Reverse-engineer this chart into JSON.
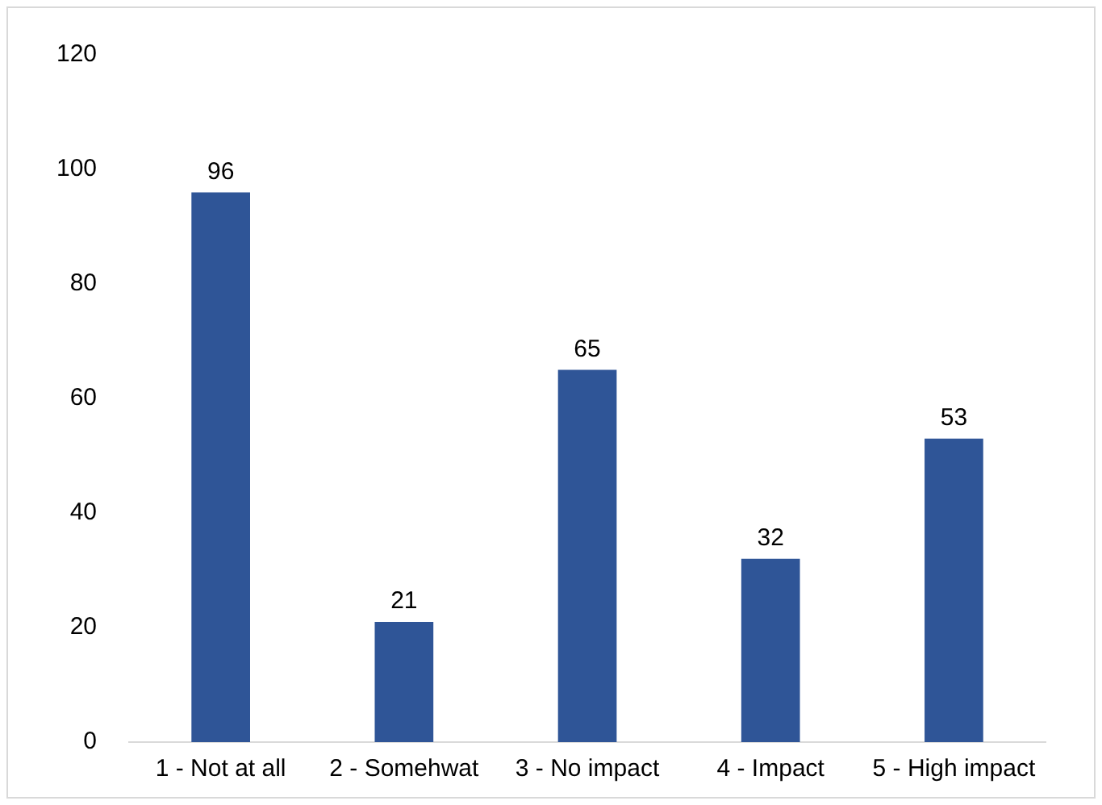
{
  "chart_data": {
    "type": "bar",
    "categories": [
      "1 - Not at all",
      "2 - Somehwat",
      "3 - No impact",
      "4 - Impact",
      "5 - High impact"
    ],
    "values": [
      96,
      21,
      65,
      32,
      53
    ],
    "color": "#2f5597",
    "ylim": [
      0,
      120
    ],
    "yticks": [
      0,
      20,
      40,
      60,
      80,
      100,
      120
    ],
    "grid": false,
    "legend": false,
    "data_labels": true
  }
}
